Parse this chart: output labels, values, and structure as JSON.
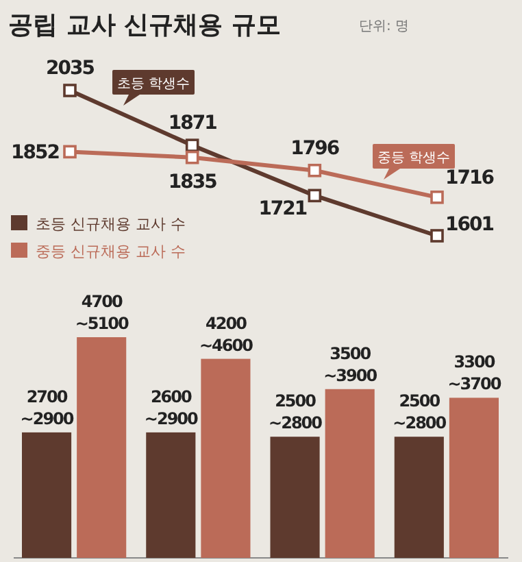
{
  "chart_data": [
    {
      "type": "line",
      "title": "공립 교사 신규채용 규모",
      "subtitle": "단위: 명",
      "categories": [
        null,
        null,
        null,
        null
      ],
      "data_labels": true,
      "marker": "square",
      "series": [
        {
          "name": "초등 학생수",
          "color": "#5e3a2e",
          "values": [
            2035,
            1871,
            1721,
            1601
          ]
        },
        {
          "name": "중등 학생수",
          "color": "#bb6b58",
          "values": [
            1852,
            1835,
            1796,
            1716
          ]
        }
      ]
    },
    {
      "type": "bar",
      "categories": [
        null,
        null,
        null,
        null
      ],
      "legend": "top left",
      "series": [
        {
          "name": "초등 신규채용 교사 수",
          "color": "#5e3a2e",
          "values": [
            2900,
            2900,
            2800,
            2800
          ],
          "value_labels": [
            "2700\n~2900",
            "2600\n~2900",
            "2500\n~2800",
            "2500\n~2800"
          ]
        },
        {
          "name": "중등 신규채용 교사 수",
          "color": "#bb6b58",
          "values": [
            5100,
            4600,
            3900,
            3700
          ],
          "value_labels": [
            "4700\n~5100",
            "4200\n~4600",
            "3500\n~3900",
            "3300\n~3700"
          ]
        }
      ]
    }
  ]
}
